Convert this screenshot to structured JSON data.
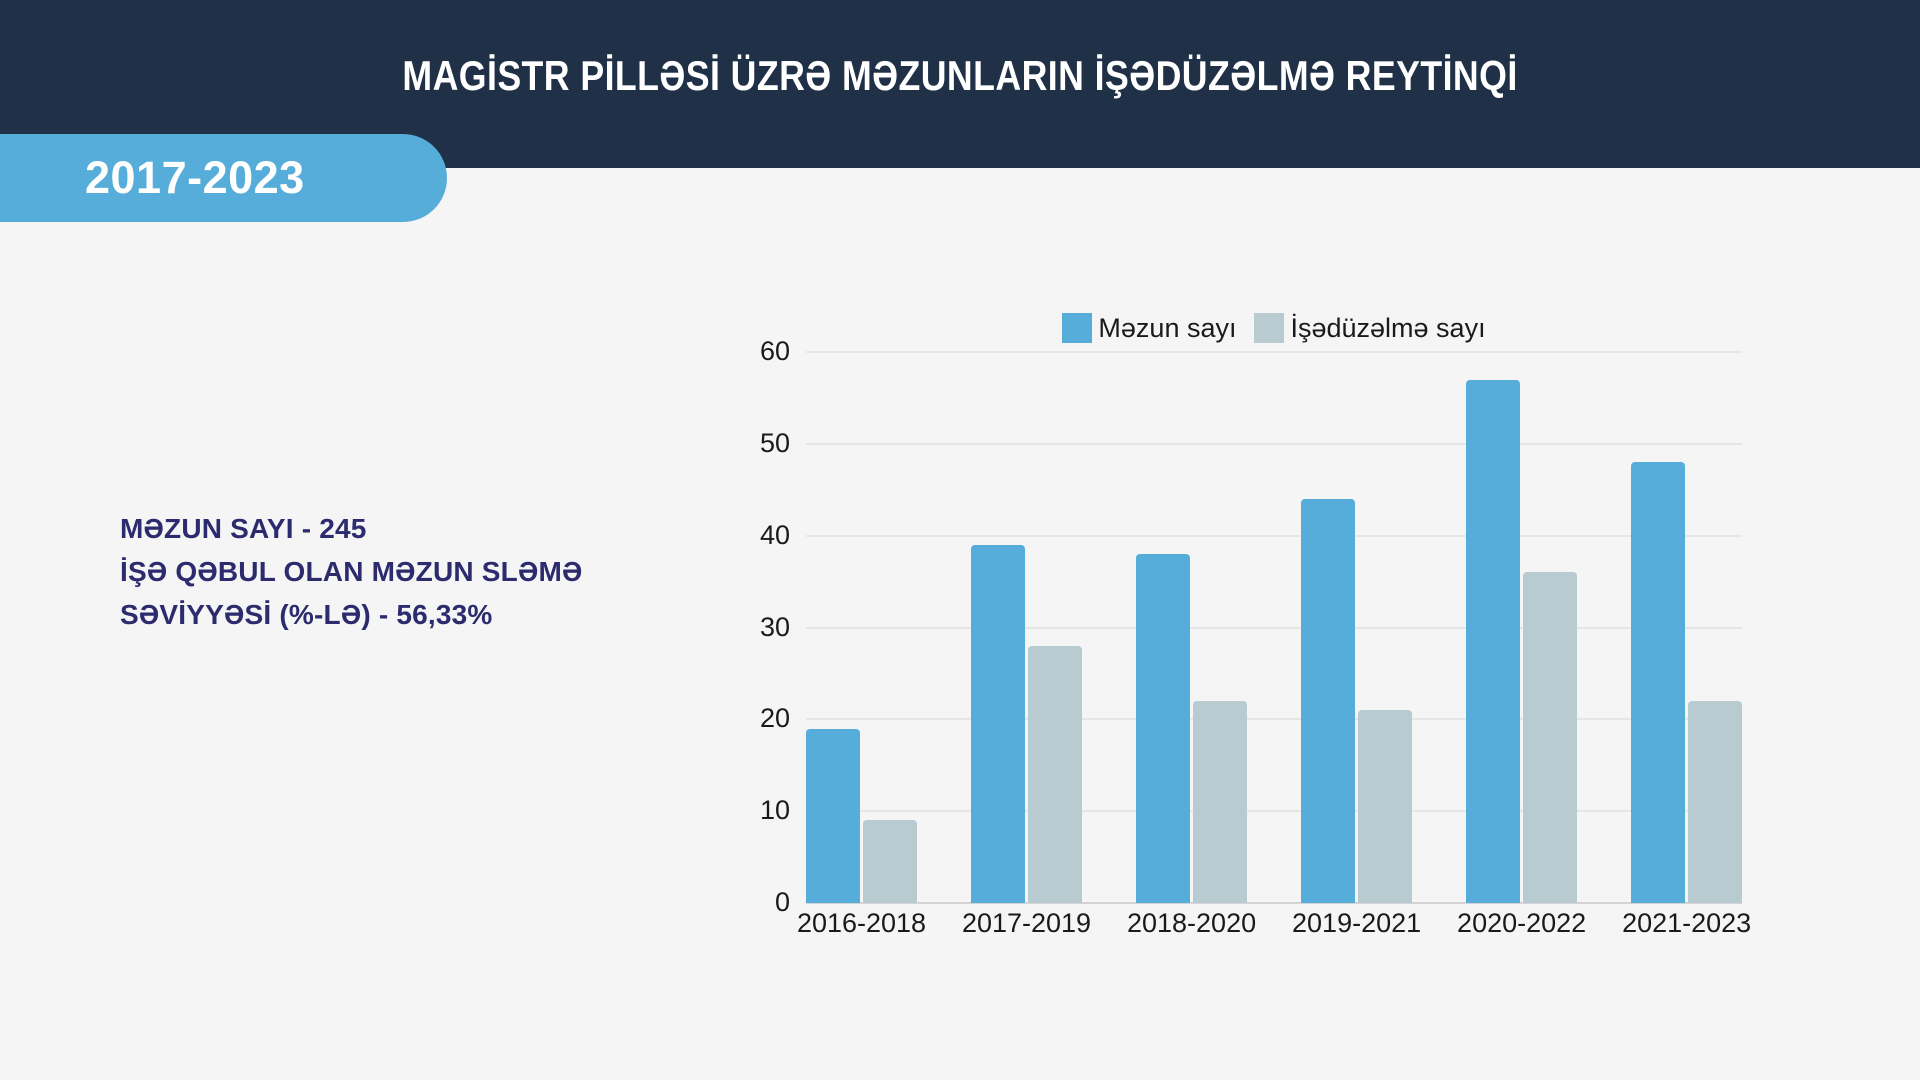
{
  "header": {
    "title": "MAGİSTR PİLLƏSİ ÜZRƏ MƏZUNLARIN İŞƏDÜZƏLMƏ REYTİNQİ"
  },
  "badge": {
    "label": "2017-2023"
  },
  "stats": {
    "lines": [
      "MƏZUN SAYI - 245",
      "İŞƏ QƏBUL OLAN MƏZUN SLƏMƏ",
      "SƏVİYYƏSİ (%-LƏ) - 56,33%"
    ]
  },
  "chart_data": {
    "type": "bar",
    "categories": [
      "2016-2018",
      "2017-2019",
      "2018-2020",
      "2019-2021",
      "2020-2022",
      "2021-2023"
    ],
    "series": [
      {
        "name": "Məzun sayı",
        "color": "#57add9",
        "values": [
          19,
          39,
          38,
          44,
          57,
          48
        ]
      },
      {
        "name": "İşədüzəlmə sayı",
        "color": "#b7cbd0",
        "values": [
          9,
          28,
          22,
          21,
          36,
          22
        ]
      }
    ],
    "title": "",
    "xlabel": "",
    "ylabel": "",
    "ylim": [
      0,
      60
    ],
    "yticks": [
      0,
      10,
      20,
      30,
      40,
      50,
      60
    ],
    "grid": true,
    "legend_position": "top"
  },
  "colors": {
    "header_bg": "#1f3047",
    "badge_bg": "#57add9",
    "page_bg": "#f5f5f6",
    "stats_text": "#2b2b6e",
    "axis_text": "#1a1a1a",
    "gridline": "#e6e6e8",
    "axis_line": "#d4d4d6"
  }
}
